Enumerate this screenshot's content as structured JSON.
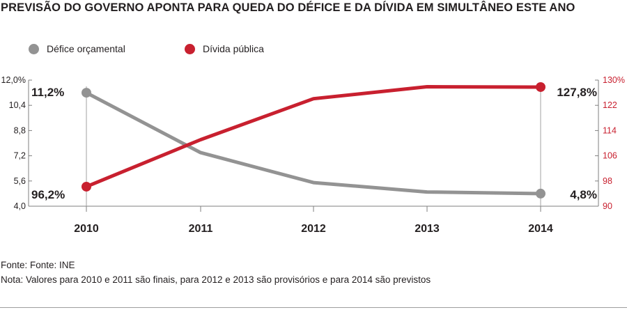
{
  "title": "PREVISÃO DO GOVERNO APONTA PARA QUEDA DO DÉFICE E DA DÍVIDA EM SIMULTÂNEO ESTE ANO",
  "footer": {
    "source": "Fonte: Fonte: INE",
    "note": "Nota: Valores para 2010 e 2011 são finais, para 2012 e 2013 são provisórios e para 2014 são previstos"
  },
  "colors": {
    "defice": "#939393",
    "divida": "#c8202f",
    "axis": "#7f7f7f",
    "text": "#231f20"
  },
  "chart_data": {
    "type": "line",
    "x": [
      "2010",
      "2011",
      "2012",
      "2013",
      "2014"
    ],
    "series": [
      {
        "name": "Défice orçamental",
        "axis": "left",
        "values": [
          11.2,
          7.4,
          5.5,
          4.9,
          4.8
        ]
      },
      {
        "name": "Dívida pública",
        "axis": "right",
        "values": [
          96.2,
          111.1,
          124.1,
          127.9,
          127.8
        ]
      }
    ],
    "y_left": {
      "lim": [
        4.0,
        12.0
      ],
      "ticks": [
        "4,0",
        "5,6",
        "7,2",
        "8,8",
        "10,4",
        "12,0%"
      ],
      "tick_values": [
        4.0,
        5.6,
        7.2,
        8.8,
        10.4,
        12.0
      ]
    },
    "y_right": {
      "lim": [
        90,
        130
      ],
      "ticks": [
        "90",
        "98",
        "106",
        "114",
        "122",
        "130%"
      ],
      "tick_values": [
        90,
        98,
        106,
        114,
        122,
        130
      ]
    },
    "annotations": [
      {
        "series": 0,
        "index": 0,
        "text": "11,2%"
      },
      {
        "series": 1,
        "index": 0,
        "text": "96,2%"
      },
      {
        "series": 1,
        "index": 4,
        "text": "127,8%"
      },
      {
        "series": 0,
        "index": 4,
        "text": "4,8%"
      }
    ],
    "markers": [
      0,
      4
    ],
    "legend": "top-left",
    "grid": false
  }
}
